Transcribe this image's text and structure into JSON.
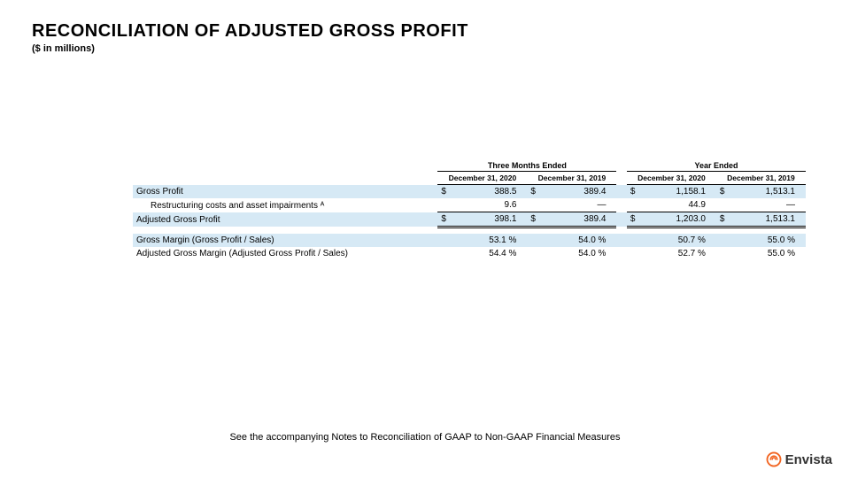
{
  "header": {
    "title": "RECONCILIATION OF ADJUSTED GROSS PROFIT",
    "subtitle": "($ in millions)"
  },
  "table": {
    "group_headers": [
      "Three Months Ended",
      "Year Ended"
    ],
    "col_headers": [
      "December 31, 2020",
      "December 31, 2019",
      "December 31, 2020",
      "December 31, 2019"
    ],
    "rows": [
      {
        "label": "Gross Profit",
        "highlight": true,
        "currency": true,
        "values": [
          "388.5",
          "389.4",
          "1,158.1",
          "1,513.1"
        ]
      },
      {
        "label": "Restructuring costs and asset impairments ᴬ",
        "indent": true,
        "values": [
          "9.6",
          "—",
          "44.9",
          "—"
        ]
      },
      {
        "label": "Adjusted Gross Profit",
        "highlight": true,
        "currency": true,
        "total": true,
        "values": [
          "398.1",
          "389.4",
          "1,203.0",
          "1,513.1"
        ]
      }
    ],
    "margin_rows": [
      {
        "label": "Gross Margin (Gross Profit / Sales)",
        "highlight": true,
        "values": [
          "53.1 %",
          "54.0 %",
          "50.7 %",
          "55.0 %"
        ]
      },
      {
        "label": "Adjusted Gross Margin (Adjusted Gross Profit / Sales)",
        "values": [
          "54.4 %",
          "54.0 %",
          "52.7 %",
          "55.0 %"
        ]
      }
    ]
  },
  "footer_note": "See the accompanying Notes to Reconciliation of GAAP to Non-GAAP Financial Measures",
  "logo": {
    "text": "Envista",
    "icon_color": "#f26522"
  }
}
